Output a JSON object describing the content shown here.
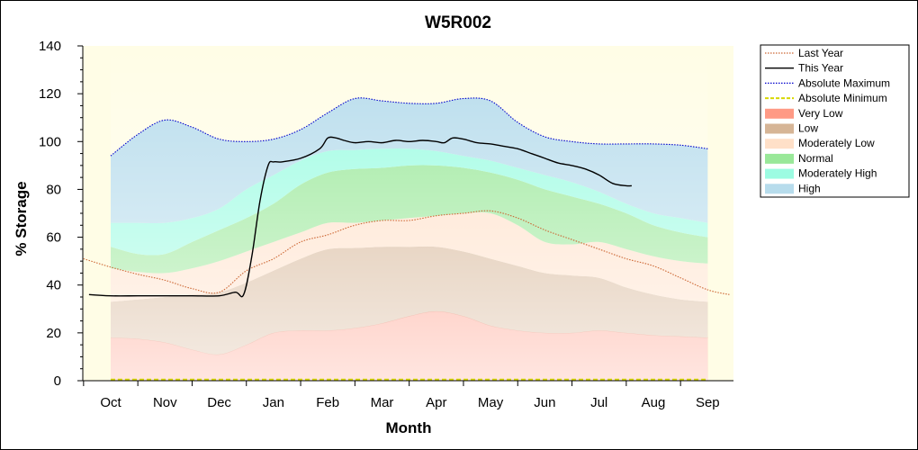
{
  "chart_data": {
    "type": "area",
    "title": "W5R002",
    "xlabel": "Month",
    "ylabel": "% Storage",
    "ylim": [
      0,
      140
    ],
    "yticks": [
      0,
      20,
      40,
      60,
      80,
      100,
      120,
      140
    ],
    "categories": [
      "Oct",
      "Nov",
      "Dec",
      "Jan",
      "Feb",
      "Mar",
      "Apr",
      "May",
      "Jun",
      "Jul",
      "Aug",
      "Sep"
    ],
    "grid": false,
    "legend_position": "right",
    "bands": [
      {
        "name": "Very Low",
        "color": "#ff9a85",
        "x": [
          0,
          0.5,
          1,
          1.5,
          2,
          2.5,
          3,
          3.5,
          4,
          4.5,
          5,
          5.5,
          6,
          6.5,
          7,
          7.5,
          8,
          8.5,
          9,
          9.5,
          10,
          10.5,
          11
        ],
        "lower": [
          0,
          0,
          0,
          0,
          0,
          0,
          0,
          0,
          0,
          0,
          0,
          0,
          0,
          0,
          0,
          0,
          0,
          0,
          0,
          0,
          0,
          0,
          0
        ],
        "upper": [
          18,
          17.5,
          16,
          13,
          11,
          15,
          20,
          21,
          21,
          22,
          24,
          27,
          29,
          27,
          23,
          21,
          20,
          20,
          21,
          20,
          19,
          18.5,
          18
        ]
      },
      {
        "name": "Low",
        "color": "#d6b596",
        "x": [
          0,
          0.5,
          1,
          1.5,
          2,
          2.5,
          3,
          3.5,
          4,
          4.5,
          5,
          5.5,
          6,
          6.5,
          7,
          7.5,
          8,
          8.5,
          9,
          9.5,
          10,
          10.5,
          11
        ],
        "lower": [
          18,
          17.5,
          16,
          13,
          11,
          15,
          20,
          21,
          21,
          22,
          24,
          27,
          29,
          27,
          23,
          21,
          20,
          20,
          21,
          20,
          19,
          18.5,
          18
        ],
        "upper": [
          33,
          34,
          35,
          36,
          37,
          41,
          46,
          51,
          55,
          55.5,
          56,
          56,
          56,
          54,
          51,
          48,
          45,
          44,
          43,
          39,
          36,
          34,
          33
        ]
      },
      {
        "name": "Moderately Low",
        "color": "#ffe0c8",
        "x": [
          0,
          0.5,
          1,
          1.5,
          2,
          2.5,
          3,
          3.5,
          4,
          4.5,
          5,
          5.5,
          6,
          6.5,
          7,
          7.5,
          8,
          8.5,
          9,
          9.5,
          10,
          10.5,
          11
        ],
        "lower": [
          33,
          34,
          35,
          36,
          37,
          41,
          46,
          51,
          55,
          55.5,
          56,
          56,
          56,
          54,
          51,
          48,
          45,
          44,
          43,
          39,
          36,
          34,
          33
        ],
        "upper": [
          47,
          45.5,
          45,
          47,
          50,
          54,
          58,
          62,
          66,
          66,
          67,
          68,
          69,
          70,
          70,
          65,
          58,
          57,
          58,
          55,
          52,
          50,
          49
        ]
      },
      {
        "name": "Normal",
        "color": "#99e899",
        "x": [
          0,
          0.5,
          1,
          1.5,
          2,
          2.5,
          3,
          3.5,
          4,
          4.5,
          5,
          5.5,
          6,
          6.5,
          7,
          7.5,
          8,
          8.5,
          9,
          9.5,
          10,
          10.5,
          11
        ],
        "lower": [
          47,
          45.5,
          45,
          47,
          50,
          54,
          58,
          62,
          66,
          66,
          67,
          68,
          69,
          70,
          70,
          65,
          58,
          57,
          58,
          55,
          52,
          50,
          49
        ],
        "upper": [
          56,
          53,
          53,
          58,
          63,
          68,
          74,
          82,
          87,
          88.5,
          89,
          90,
          90,
          89,
          87,
          84,
          80,
          77,
          74,
          70,
          65,
          62,
          60
        ]
      },
      {
        "name": "Moderately High",
        "color": "#9cfce2",
        "x": [
          0,
          0.5,
          1,
          1.5,
          2,
          2.5,
          3,
          3.5,
          4,
          4.5,
          5,
          5.5,
          6,
          6.5,
          7,
          7.5,
          8,
          8.5,
          9,
          9.5,
          10,
          10.5,
          11
        ],
        "lower": [
          56,
          53,
          53,
          58,
          63,
          68,
          74,
          82,
          87,
          88.5,
          89,
          90,
          90,
          89,
          87,
          84,
          80,
          77,
          74,
          70,
          65,
          62,
          60
        ],
        "upper": [
          66,
          66,
          66,
          68,
          72,
          80,
          86,
          92,
          96,
          96.5,
          97,
          97,
          96,
          94,
          92,
          89,
          86,
          83,
          79,
          74,
          70,
          68,
          66
        ]
      },
      {
        "name": "High",
        "color": "#b7dcec",
        "x": [
          0,
          0.5,
          1,
          1.5,
          2,
          2.5,
          3,
          3.5,
          4,
          4.5,
          5,
          5.5,
          6,
          6.5,
          7,
          7.5,
          8,
          8.5,
          9,
          9.5,
          10,
          10.5,
          11
        ],
        "lower": [
          66,
          66,
          66,
          68,
          72,
          80,
          86,
          92,
          96,
          96.5,
          97,
          97,
          96,
          94,
          92,
          89,
          86,
          83,
          79,
          74,
          70,
          68,
          66
        ],
        "upper": [
          94,
          103,
          109,
          106,
          101,
          100,
          101,
          105,
          112,
          118,
          117,
          116,
          116,
          118,
          117,
          108,
          102,
          100,
          99,
          99,
          99,
          98.5,
          97
        ]
      }
    ],
    "series": [
      {
        "name": "Last Year",
        "color": "#cc6633",
        "style": "dotted",
        "x": [
          -0.5,
          0,
          0.5,
          1,
          1.5,
          2,
          2.5,
          3,
          3.5,
          4,
          4.5,
          5,
          5.5,
          6,
          6.5,
          7,
          7.5,
          8,
          8.5,
          9,
          9.5,
          10,
          10.5,
          11,
          11.4
        ],
        "values": [
          51,
          47.5,
          44.5,
          42,
          38.5,
          37,
          46,
          51,
          58,
          61,
          65,
          67,
          67,
          69,
          70,
          71,
          68,
          63,
          59,
          55,
          51,
          48,
          43,
          38,
          36
        ]
      },
      {
        "name": "This Year",
        "color": "#000000",
        "style": "solid",
        "x": [
          -0.4,
          0,
          0.5,
          1,
          1.5,
          2,
          2.3,
          2.45,
          2.6,
          2.75,
          2.9,
          3.0,
          3.15,
          3.5,
          3.85,
          4.0,
          4.15,
          4.3,
          4.5,
          4.75,
          5,
          5.25,
          5.5,
          5.75,
          6.0,
          6.15,
          6.3,
          6.5,
          6.75,
          7.0,
          7.25,
          7.5,
          7.75,
          8,
          8.25,
          8.5,
          8.75,
          9,
          9.25,
          9.5,
          9.6
        ],
        "values": [
          36,
          35.5,
          35.5,
          35.5,
          35.5,
          35.5,
          37,
          36,
          52,
          75,
          90,
          91.5,
          91.5,
          93,
          97,
          101.5,
          101.5,
          100.5,
          99.5,
          100,
          99.5,
          100.5,
          100,
          100.5,
          100,
          99.5,
          101.5,
          101,
          99.5,
          99,
          98,
          97,
          95,
          93,
          91,
          90,
          88.5,
          86,
          82.5,
          81.5,
          81.5
        ]
      },
      {
        "name": "Absolute Maximum",
        "color": "#0000cc",
        "style": "dotted",
        "x": [
          0,
          0.5,
          1,
          1.5,
          2,
          2.5,
          3,
          3.5,
          4,
          4.5,
          5,
          5.5,
          6,
          6.5,
          7,
          7.5,
          8,
          8.5,
          9,
          9.5,
          10,
          10.5,
          11
        ],
        "values": [
          94,
          103,
          109,
          106,
          101,
          100,
          101,
          105,
          112,
          118,
          117,
          116,
          116,
          118,
          117,
          108,
          102,
          100,
          99,
          99,
          99,
          98.5,
          97
        ]
      },
      {
        "name": "Absolute Minimum",
        "color": "#d8d800",
        "style": "dashed",
        "x": [
          0,
          1,
          2,
          3,
          4,
          5,
          6,
          7,
          8,
          9,
          10,
          11
        ],
        "values": [
          0.5,
          0.5,
          0.5,
          0.5,
          0.5,
          0.5,
          0.5,
          0.5,
          0.5,
          0.5,
          0.5,
          0.5
        ]
      }
    ],
    "legend_entries": [
      {
        "name": "Last Year",
        "swatch": "dotted-line",
        "color": "#cc6633"
      },
      {
        "name": "This Year",
        "swatch": "line",
        "color": "#000000"
      },
      {
        "name": "Absolute Maximum",
        "swatch": "dotted-line",
        "color": "#0000cc"
      },
      {
        "name": "Absolute Minimum",
        "swatch": "dashed-line",
        "color": "#d8d800"
      },
      {
        "name": "Very Low",
        "swatch": "box",
        "color": "#ff9a85"
      },
      {
        "name": "Low",
        "swatch": "box",
        "color": "#d6b596"
      },
      {
        "name": "Moderately Low",
        "swatch": "box",
        "color": "#ffe0c8"
      },
      {
        "name": "Normal",
        "swatch": "box",
        "color": "#99e899"
      },
      {
        "name": "Moderately High",
        "swatch": "box",
        "color": "#9cfce2"
      },
      {
        "name": "High",
        "swatch": "box",
        "color": "#b7dcec"
      }
    ],
    "plot_background": "#fffde6"
  }
}
